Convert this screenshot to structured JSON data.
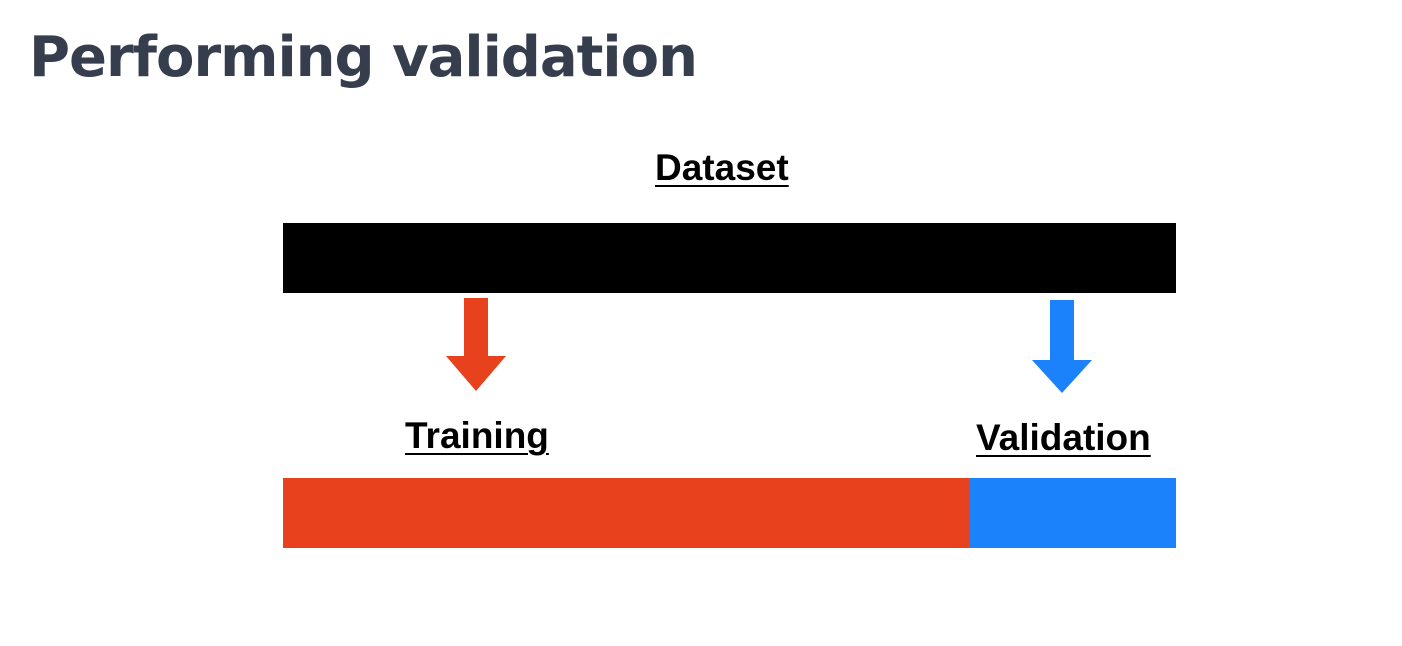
{
  "slide": {
    "title": "Performing validation",
    "title_color": "#363e4d"
  },
  "diagram": {
    "dataset": {
      "label": "Dataset",
      "color": "#000000"
    },
    "training": {
      "label": "Training",
      "color": "#e8411d",
      "share": 0.768
    },
    "validation": {
      "label": "Validation",
      "color": "#1c82fb",
      "share": 0.232
    }
  }
}
